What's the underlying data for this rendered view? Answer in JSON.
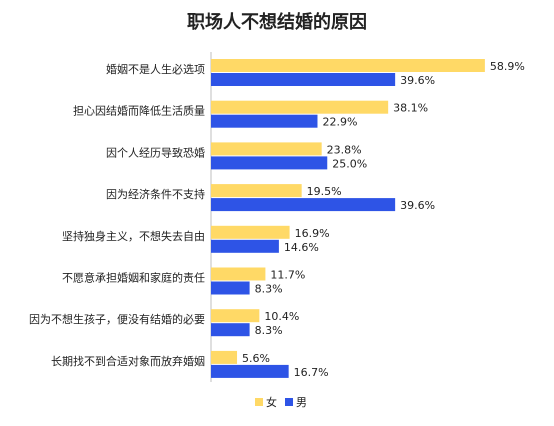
{
  "chart_data": {
    "type": "bar",
    "orientation": "horizontal",
    "title": "职场人不想结婚的原因",
    "categories": [
      "婚姻不是人生必选项",
      "担心因结婚而降低生活质量",
      "因个人经历导致恐婚",
      "因为经济条件不支持",
      "坚持独身主义，不想失去自由",
      "不愿意承担婚姻和家庭的责任",
      "因为不想生孩子，便没有结婚的必要",
      "长期找不到合适对象而放弃婚姻"
    ],
    "series": [
      {
        "name": "女",
        "color": "#FFD966",
        "values": [
          58.9,
          38.1,
          23.8,
          19.5,
          16.9,
          11.7,
          10.4,
          5.6
        ],
        "labels": [
          "58.9%",
          "38.1%",
          "23.8%",
          "19.5%",
          "16.9%",
          "11.7%",
          "10.4%",
          "5.6%"
        ]
      },
      {
        "name": "男",
        "color": "#2E54E6",
        "values": [
          39.6,
          22.9,
          25.0,
          39.6,
          14.6,
          8.3,
          8.3,
          16.7
        ],
        "labels": [
          "39.6%",
          "22.9%",
          "25.0%",
          "39.6%",
          "14.6%",
          "8.3%",
          "8.3%",
          "16.7%"
        ]
      }
    ],
    "xlim": [
      0,
      60
    ],
    "grid": false,
    "legend": "bottom"
  }
}
